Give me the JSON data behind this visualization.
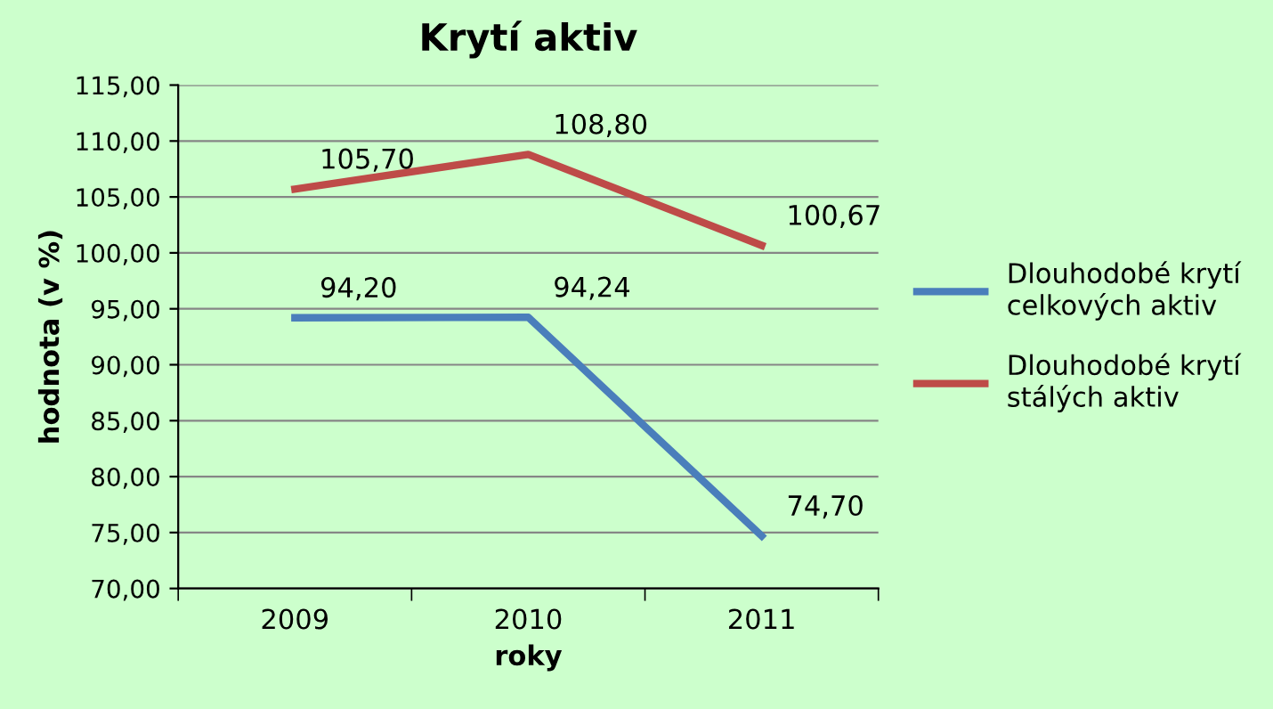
{
  "chart_data": {
    "type": "line",
    "title": "Krytí aktiv",
    "xlabel": "roky",
    "ylabel": "hodnota (v %)",
    "categories": [
      "2009",
      "2010",
      "2011"
    ],
    "series": [
      {
        "name": "Dlouhodobé krytí celkových aktiv",
        "color": "#4a7ebb",
        "values": [
          94.2,
          94.24,
          74.7
        ],
        "value_labels": [
          "94,20",
          "94,24",
          "74,70"
        ]
      },
      {
        "name": "Dlouhodobé krytí stálých aktiv",
        "color": "#be4b48",
        "values": [
          105.7,
          108.8,
          100.67
        ],
        "value_labels": [
          "105,70",
          "108,80",
          "100,67"
        ]
      }
    ],
    "ylim": [
      70,
      115
    ],
    "yticks": [
      {
        "value": 70,
        "label": "70,00"
      },
      {
        "value": 75,
        "label": "75,00"
      },
      {
        "value": 80,
        "label": "80,00"
      },
      {
        "value": 85,
        "label": "85,00"
      },
      {
        "value": 90,
        "label": "90,00"
      },
      {
        "value": 95,
        "label": "95,00"
      },
      {
        "value": 100,
        "label": "100,00"
      },
      {
        "value": 105,
        "label": "105,00"
      },
      {
        "value": 110,
        "label": "110,00"
      },
      {
        "value": 115,
        "label": "115,00"
      }
    ],
    "grid": "y",
    "legend": "right",
    "marker": "none",
    "line_style": "solid"
  }
}
